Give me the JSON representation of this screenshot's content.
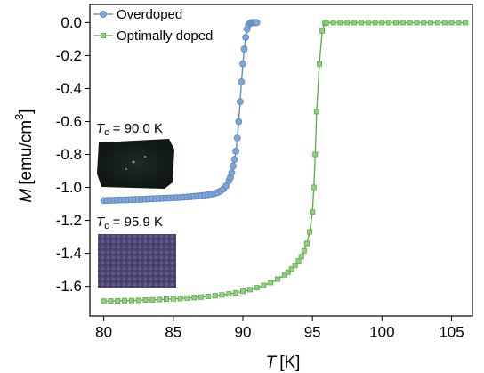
{
  "chart_data": {
    "type": "line",
    "xlabel": {
      "symbol": "T",
      "unit": "[K]"
    },
    "ylabel": {
      "symbol": "M",
      "unit": "[emu/cm",
      "sup": "3",
      "close": "]"
    },
    "xlim": [
      79,
      106.5
    ],
    "ylim": [
      -1.78,
      0.11
    ],
    "xticks": [
      80,
      85,
      90,
      95,
      100,
      105
    ],
    "yticks": [
      {
        "value": 0,
        "label": "0.0"
      },
      -0.2,
      -0.4,
      -0.6,
      -0.8,
      {
        "value": -1,
        "label": "-1.0"
      },
      -1.2,
      -1.4,
      -1.6
    ],
    "legend": "upper left",
    "annotations": [
      {
        "symbol": "T",
        "sub": "c",
        "text": "= 90.0 K"
      },
      {
        "symbol": "T",
        "sub": "c",
        "text": "= 95.9 K"
      }
    ],
    "series": [
      {
        "name": "Overdoped",
        "color": "#7ea6d8",
        "edge": "#5b84bb",
        "marker": "circle",
        "x": [
          80,
          80.25,
          80.5,
          80.75,
          81,
          81.25,
          81.5,
          81.75,
          82,
          82.25,
          82.5,
          82.75,
          83,
          83.25,
          83.5,
          83.75,
          84,
          84.25,
          84.5,
          84.75,
          85,
          85.25,
          85.5,
          85.75,
          86,
          86.25,
          86.5,
          86.75,
          87,
          87.25,
          87.5,
          87.75,
          88,
          88.2,
          88.4,
          88.6,
          88.8,
          89,
          89.1,
          89.2,
          89.3,
          89.4,
          89.5,
          89.6,
          89.7,
          89.8,
          89.9,
          90,
          90.1,
          90.2,
          90.3,
          90.4,
          90.5,
          90.6,
          90.7,
          90.8,
          90.9,
          91
        ],
        "values": [
          -1.08,
          -1.079,
          -1.078,
          -1.078,
          -1.077,
          -1.076,
          -1.076,
          -1.075,
          -1.074,
          -1.073,
          -1.073,
          -1.072,
          -1.071,
          -1.07,
          -1.069,
          -1.068,
          -1.067,
          -1.066,
          -1.065,
          -1.064,
          -1.063,
          -1.062,
          -1.061,
          -1.059,
          -1.058,
          -1.056,
          -1.054,
          -1.052,
          -1.05,
          -1.047,
          -1.044,
          -1.04,
          -1.036,
          -1.03,
          -1.022,
          -1.01,
          -0.99,
          -0.96,
          -0.94,
          -0.91,
          -0.87,
          -0.83,
          -0.78,
          -0.7,
          -0.6,
          -0.48,
          -0.36,
          -0.25,
          -0.16,
          -0.09,
          -0.04,
          -0.015,
          -0.005,
          0,
          0,
          0,
          0,
          0
        ]
      },
      {
        "name": "Optimally doped",
        "color": "#92d07f",
        "edge": "#5aa84a",
        "marker": "square",
        "x": [
          80,
          80.5,
          81,
          81.5,
          82,
          82.5,
          83,
          83.5,
          84,
          84.5,
          85,
          85.5,
          86,
          86.5,
          87,
          87.5,
          88,
          88.5,
          89,
          89.5,
          90,
          90.5,
          91,
          91.5,
          92,
          92.5,
          93,
          93.25,
          93.5,
          93.75,
          94,
          94.2,
          94.4,
          94.6,
          94.8,
          95,
          95.1,
          95.2,
          95.3,
          95.5,
          95.7,
          95.9,
          96,
          96.5,
          97,
          97.5,
          98,
          98.5,
          99,
          99.5,
          100,
          100.5,
          101,
          101.5,
          102,
          102.5,
          103,
          103.5,
          104,
          104.5,
          105,
          105.5,
          106
        ],
        "values": [
          -1.69,
          -1.689,
          -1.688,
          -1.687,
          -1.686,
          -1.685,
          -1.683,
          -1.682,
          -1.68,
          -1.678,
          -1.676,
          -1.674,
          -1.671,
          -1.668,
          -1.665,
          -1.661,
          -1.657,
          -1.652,
          -1.646,
          -1.639,
          -1.63,
          -1.62,
          -1.608,
          -1.594,
          -1.577,
          -1.556,
          -1.53,
          -1.514,
          -1.495,
          -1.473,
          -1.446,
          -1.42,
          -1.385,
          -1.34,
          -1.27,
          -1.15,
          -1.0,
          -0.8,
          -0.54,
          -0.25,
          -0.05,
          -0.005,
          0,
          0,
          0,
          0,
          0,
          0,
          0,
          0,
          0,
          0,
          0,
          0,
          0,
          0,
          0,
          0,
          0,
          0,
          0,
          0,
          0
        ]
      }
    ]
  }
}
